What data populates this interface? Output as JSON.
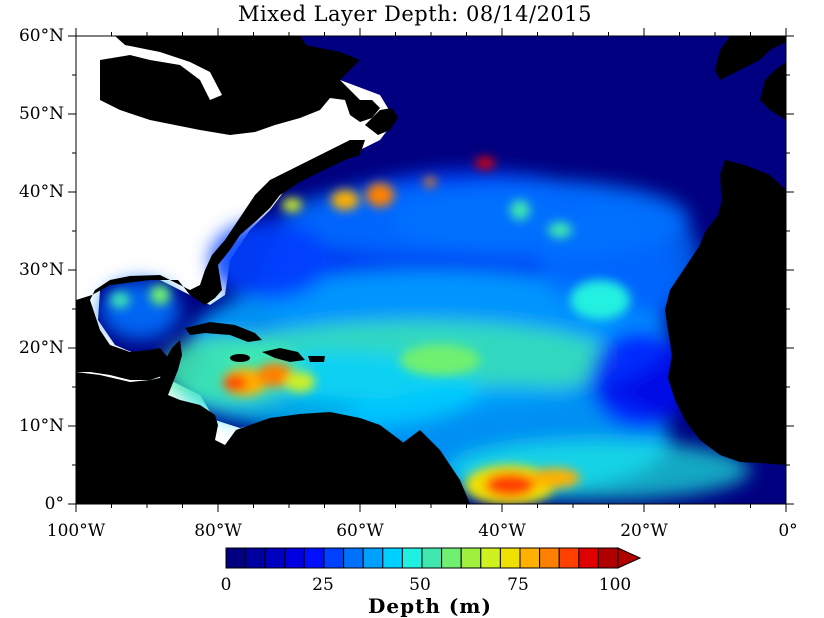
{
  "title": "Mixed Layer Depth: 08/14/2015",
  "lat_labels": [
    "60°N",
    "50°N",
    "40°N",
    "30°N",
    "20°N",
    "10°N",
    "0°"
  ],
  "lon_labels": [
    "100°W",
    "80°W",
    "60°W",
    "40°W",
    "20°W",
    "0°"
  ],
  "colorbar": {
    "title": "Depth (m)",
    "tick_labels": [
      "0",
      "25",
      "50",
      "75",
      "100"
    ],
    "min": 0,
    "max": 100,
    "step": 5,
    "colors": [
      "#000080",
      "#0000a0",
      "#0000c0",
      "#0000e0",
      "#0010ff",
      "#0040ff",
      "#0070ff",
      "#00a0ff",
      "#00d0ff",
      "#20f0e0",
      "#40e8b0",
      "#70f070",
      "#a0f040",
      "#d0f020",
      "#f0e000",
      "#ffb000",
      "#ff8000",
      "#ff4000",
      "#e00000",
      "#b00000"
    ]
  },
  "colors": {
    "land": "#000000",
    "no_data": "#ffffff",
    "shallow_ocean": "#000080"
  }
}
